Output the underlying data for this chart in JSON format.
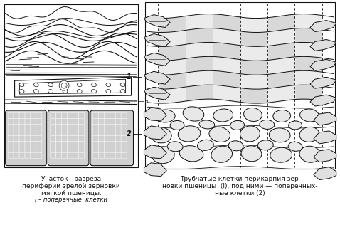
{
  "bg_color": "#ffffff",
  "fig_width": 4.78,
  "fig_height": 3.16,
  "dpi": 100,
  "line_color": "#111111",
  "stipple_color": "#cccccc",
  "left_caption": [
    "Участок   разреза",
    "периферии зрелой зерновки",
    "мягкой пшеницы:",
    "l – поперечные  клетки"
  ],
  "right_caption_l1": "Трубчатые клетки перикарпия зер-",
  "right_caption_l2": "новки пшеницы  (l), под ними — поперечных-",
  "right_caption_l2b": "новки пшеницы  (l), под ними — поперечных-",
  "right_caption": [
    "Трубчатые клетки перикарпия зер-",
    "новки пшеницы  (l), под ними — поперечных-",
    "ные клетки (2)"
  ]
}
